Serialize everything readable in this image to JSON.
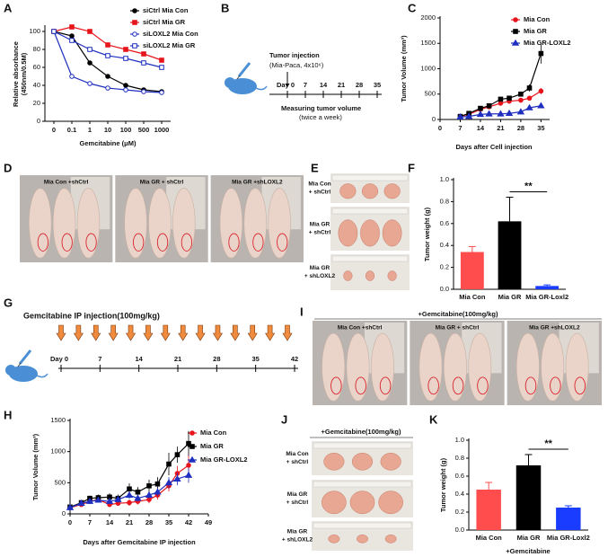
{
  "chart_data": [
    {
      "panel": "A",
      "type": "line",
      "categories": [
        "0",
        "0.1",
        "1",
        "10",
        "100",
        "500",
        "1000"
      ],
      "xlabel": "Gemcitabine (μM)",
      "ylabel": [
        "Relative absorbance",
        "(450nm/0.5M)"
      ],
      "ylim": [
        0,
        105
      ],
      "yticks": [
        0,
        20,
        40,
        60,
        80,
        100
      ],
      "legend": "upper right",
      "series": [
        {
          "name": "siCtrl Mia Con",
          "color": "#000000",
          "marker": "circle",
          "filled": true,
          "values": [
            100,
            95,
            65,
            50,
            40,
            35,
            33
          ]
        },
        {
          "name": "siCtrl Mia GR",
          "color": "#e8141c",
          "marker": "square",
          "filled": true,
          "values": [
            100,
            105,
            100,
            85,
            80,
            75,
            68
          ]
        },
        {
          "name": "siLOXL2 Mia Con",
          "color": "#1f2fbf",
          "marker": "circle",
          "filled": false,
          "values": [
            100,
            50,
            42,
            37,
            35,
            33,
            32
          ]
        },
        {
          "name": "siLOXL2 Mia GR",
          "color": "#1f2fbf",
          "marker": "square",
          "filled": false,
          "values": [
            100,
            90,
            80,
            73,
            70,
            65,
            60
          ]
        }
      ]
    },
    {
      "panel": "C",
      "type": "line",
      "x": [
        7,
        10,
        14,
        17,
        21,
        24,
        28,
        31,
        35
      ],
      "xlim": [
        0,
        38
      ],
      "xticks": [
        0,
        7,
        14,
        21,
        28,
        35
      ],
      "xlabel": "Days after Cell injection",
      "ylabel": "Tumor Volume (mm³)",
      "ylim": [
        0,
        2000
      ],
      "yticks": [
        0,
        500,
        1000,
        1500,
        2000
      ],
      "legend": "upper right",
      "series": [
        {
          "name": "Mia Con",
          "color": "#e8141c",
          "marker": "circle",
          "filled": true,
          "values": [
            60,
            100,
            200,
            250,
            320,
            360,
            380,
            420,
            560
          ],
          "errors": [
            10,
            15,
            20,
            25,
            30,
            30,
            35,
            40,
            60
          ]
        },
        {
          "name": "Mia GR",
          "color": "#000000",
          "marker": "square",
          "filled": true,
          "values": [
            60,
            120,
            220,
            270,
            400,
            420,
            500,
            620,
            1300
          ],
          "errors": [
            10,
            15,
            20,
            25,
            35,
            40,
            45,
            70,
            200
          ]
        },
        {
          "name": "Mia GR-LOXL2",
          "color": "#1f2fbf",
          "marker": "triangle",
          "filled": true,
          "values": [
            50,
            60,
            100,
            110,
            110,
            120,
            150,
            230,
            270
          ],
          "errors": [
            5,
            10,
            10,
            15,
            15,
            15,
            20,
            30,
            40
          ]
        }
      ]
    },
    {
      "panel": "F",
      "type": "bar",
      "categories": [
        "Mia Con",
        "Mia GR",
        "Mia GR-Loxl2"
      ],
      "values": [
        0.34,
        0.62,
        0.03
      ],
      "errors": [
        0.05,
        0.22,
        0.01
      ],
      "colors": [
        "#ff4d4d",
        "#000000",
        "#1a3cff"
      ],
      "ylabel": "Tumor weight (g)",
      "ylim": [
        0,
        1
      ],
      "yticks": [
        {
          "value": 0,
          "label": "0.0"
        },
        0.2,
        0.4,
        0.6,
        0.8,
        {
          "value": 1,
          "label": "1.0"
        }
      ],
      "annotation": "**"
    },
    {
      "panel": "H",
      "type": "line",
      "x": [
        0,
        4,
        7,
        10,
        14,
        17,
        21,
        24,
        28,
        31,
        35,
        38,
        42
      ],
      "xlim": [
        0,
        49
      ],
      "xticks": [
        0,
        7,
        14,
        21,
        28,
        35,
        42,
        49
      ],
      "xlabel": "Days after Gemcitabine IP injection",
      "ylabel": "Tumor Volume (mm³)",
      "ylim": [
        0,
        1500
      ],
      "yticks": [
        0,
        500,
        1000,
        1500
      ],
      "legend": "upper right",
      "series": [
        {
          "name": "Mia Con",
          "color": "#e8141c",
          "marker": "circle",
          "filled": true,
          "values": [
            100,
            150,
            200,
            230,
            150,
            170,
            180,
            200,
            230,
            300,
            450,
            650,
            780
          ],
          "errors": [
            20,
            30,
            30,
            40,
            40,
            40,
            50,
            50,
            60,
            70,
            90,
            120,
            150
          ]
        },
        {
          "name": "Mia GR",
          "color": "#000000",
          "marker": "square",
          "filled": true,
          "values": [
            110,
            180,
            250,
            260,
            270,
            250,
            400,
            350,
            450,
            480,
            800,
            950,
            1130
          ],
          "errors": [
            20,
            40,
            40,
            50,
            60,
            60,
            90,
            80,
            100,
            110,
            180,
            130,
            200
          ]
        },
        {
          "name": "Mia GR-LOXL2",
          "color": "#1f2fbf",
          "marker": "triangle",
          "filled": true,
          "values": [
            100,
            170,
            200,
            220,
            200,
            230,
            300,
            250,
            300,
            350,
            500,
            560,
            620
          ],
          "errors": [
            20,
            30,
            40,
            40,
            40,
            50,
            60,
            50,
            60,
            70,
            90,
            100,
            120
          ]
        }
      ]
    },
    {
      "panel": "K",
      "type": "bar",
      "categories": [
        "Mia Con",
        "Mia GR",
        "Mia GR-Loxl2"
      ],
      "values": [
        0.45,
        0.72,
        0.25
      ],
      "errors": [
        0.08,
        0.12,
        0.02
      ],
      "colors": [
        "#ff4d4d",
        "#000000",
        "#1a3cff"
      ],
      "ylabel": "Tumor weight (g)",
      "xlabel": "+Gemcitabine",
      "ylim": [
        0,
        1
      ],
      "yticks": [
        {
          "value": 0,
          "label": "0.0"
        },
        0.2,
        0.4,
        0.6,
        0.8,
        {
          "value": 1,
          "label": "1.0"
        }
      ],
      "annotation": "**"
    }
  ],
  "timelines": [
    {
      "panel": "B",
      "title": "Tumor injection",
      "subtitle": "(Mia-Paca, 4x10⁶)",
      "start": "Day 0",
      "ticks": [
        7,
        14,
        21,
        28,
        35
      ],
      "note": "Measuring tumor volume",
      "note2": "(twice a week)"
    },
    {
      "panel": "G",
      "title": "Gemcitabine IP injection(100mg/kg)",
      "start": "Day 0",
      "ticks": [
        7,
        14,
        21,
        28,
        35,
        42
      ]
    }
  ],
  "photos": [
    {
      "panel": "D",
      "labels": [
        "Mia Con +shCtrl",
        "Mia GR + shCtrl",
        "Mia GR +shLOXL2"
      ]
    },
    {
      "panel": "E",
      "rows": [
        [
          "Mia Con",
          "+ shCtrl"
        ],
        [
          "Mia GR",
          "+ shCtrl"
        ],
        [
          "Mia GR",
          "+ shLOXL2"
        ]
      ]
    },
    {
      "panel": "I",
      "title": "+Gemcitabine(100mg/kg)",
      "labels": [
        "Mia Con +shCtrl",
        "Mia GR + shCtrl",
        "Mia GR +shLOXL2"
      ]
    },
    {
      "panel": "J",
      "title": "+Gemcitabine(100mg/kg)",
      "rows": [
        [
          "Mia Con",
          "+ shCtrl"
        ],
        [
          "Mia GR",
          "+ shCtrl"
        ],
        [
          "Mia GR",
          "+ shLOXL2"
        ]
      ]
    }
  ]
}
